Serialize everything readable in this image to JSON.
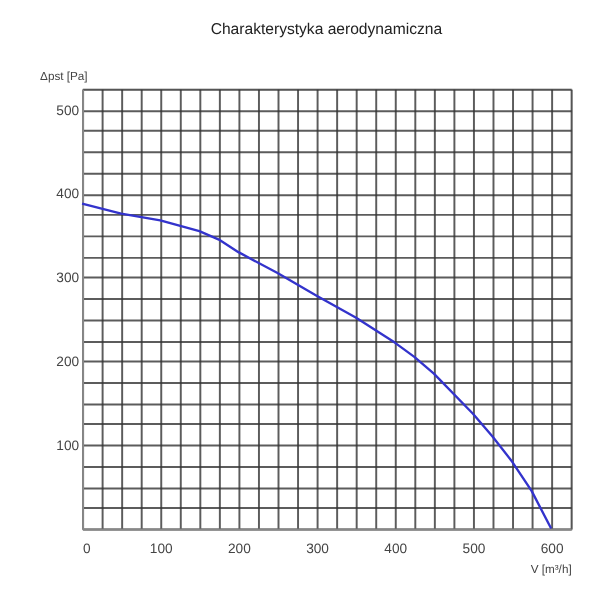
{
  "chart_data": {
    "type": "line",
    "title": "Charakterystyka aerodynamiczna",
    "xlabel": "V [m³/h]",
    "ylabel": "Δpst [Pa]",
    "x": [
      0,
      50,
      100,
      150,
      175,
      200,
      250,
      300,
      350,
      400,
      425,
      450,
      500,
      525,
      550,
      575,
      600
    ],
    "series": [
      {
        "color": "#3333cc",
        "values": [
          388,
          376,
          368,
          355,
          345,
          330,
          305,
          278,
          252,
          222,
          205,
          185,
          137,
          110,
          80,
          45,
          0
        ]
      }
    ],
    "xlim": [
      0,
      625
    ],
    "ylim": [
      0,
      525
    ],
    "xticks": [
      0,
      {
        "value": 25,
        "label": null
      },
      {
        "value": 50,
        "label": null
      },
      {
        "value": 75,
        "label": null
      },
      100,
      {
        "value": 125,
        "label": null
      },
      {
        "value": 150,
        "label": null
      },
      {
        "value": 175,
        "label": null
      },
      200,
      {
        "value": 225,
        "label": null
      },
      {
        "value": 250,
        "label": null
      },
      {
        "value": 275,
        "label": null
      },
      300,
      {
        "value": 325,
        "label": null
      },
      {
        "value": 350,
        "label": null
      },
      {
        "value": 375,
        "label": null
      },
      400,
      {
        "value": 425,
        "label": null
      },
      {
        "value": 450,
        "label": null
      },
      {
        "value": 475,
        "label": null
      },
      500,
      {
        "value": 525,
        "label": null
      },
      {
        "value": 550,
        "label": null
      },
      {
        "value": 575,
        "label": null
      },
      600,
      {
        "value": 625,
        "label": null
      }
    ],
    "yticks": [
      {
        "value": 0,
        "label": null
      },
      {
        "value": 25,
        "label": null
      },
      {
        "value": 50,
        "label": null
      },
      {
        "value": 75,
        "label": null
      },
      100,
      {
        "value": 125,
        "label": null
      },
      {
        "value": 150,
        "label": null
      },
      {
        "value": 175,
        "label": null
      },
      200,
      {
        "value": 225,
        "label": null
      },
      {
        "value": 250,
        "label": null
      },
      {
        "value": 275,
        "label": null
      },
      300,
      {
        "value": 325,
        "label": null
      },
      {
        "value": 350,
        "label": null
      },
      {
        "value": 375,
        "label": null
      },
      400,
      {
        "value": 425,
        "label": null
      },
      {
        "value": 450,
        "label": null
      },
      {
        "value": 475,
        "label": null
      },
      500,
      {
        "value": 525,
        "label": null
      }
    ],
    "grid": true,
    "marker": "none",
    "line_style": "solid"
  }
}
